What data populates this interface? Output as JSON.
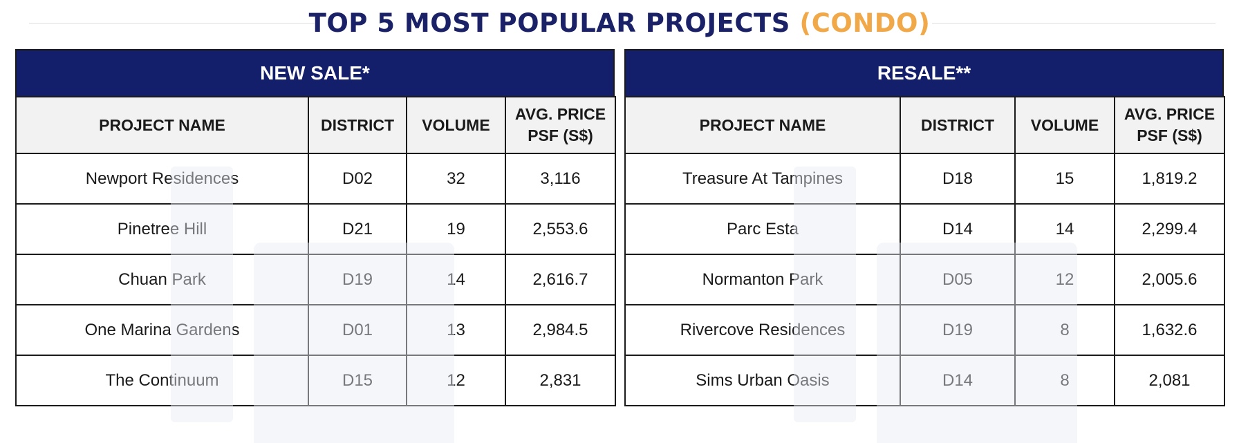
{
  "title": {
    "main": "TOP 5 MOST POPULAR PROJECTS",
    "accent": "(CONDO)"
  },
  "colors": {
    "header_navy": "#141f6b",
    "title_navy": "#1a2166",
    "accent_orange": "#f0a848",
    "column_header_bg": "#f2f2f2"
  },
  "new_sale": {
    "heading": "NEW SALE*",
    "columns": [
      "PROJECT NAME",
      "DISTRICT",
      "VOLUME",
      "AVG. PRICE PSF (S$)"
    ],
    "rows": [
      {
        "name": "Newport Residences",
        "district": "D02",
        "volume": "32",
        "price": "3,116"
      },
      {
        "name": "Pinetree Hill",
        "district": "D21",
        "volume": "19",
        "price": "2,553.6"
      },
      {
        "name": "Chuan Park",
        "district": "D19",
        "volume": "14",
        "price": "2,616.7"
      },
      {
        "name": "One Marina Gardens",
        "district": "D01",
        "volume": "13",
        "price": "2,984.5"
      },
      {
        "name": "The Continuum",
        "district": "D15",
        "volume": "12",
        "price": "2,831"
      }
    ]
  },
  "resale": {
    "heading": "RESALE**",
    "columns": [
      "PROJECT NAME",
      "DISTRICT",
      "VOLUME",
      "AVG. PRICE PSF (S$)"
    ],
    "rows": [
      {
        "name": "Treasure At Tampines",
        "district": "D18",
        "volume": "15",
        "price": "1,819.2"
      },
      {
        "name": "Parc Esta",
        "district": "D14",
        "volume": "14",
        "price": "2,299.4"
      },
      {
        "name": "Normanton Park",
        "district": "D05",
        "volume": "12",
        "price": "2,005.6"
      },
      {
        "name": "Rivercove Residences",
        "district": "D19",
        "volume": "8",
        "price": "1,632.6"
      },
      {
        "name": "Sims Urban Oasis",
        "district": "D14",
        "volume": "8",
        "price": "2,081"
      }
    ]
  }
}
